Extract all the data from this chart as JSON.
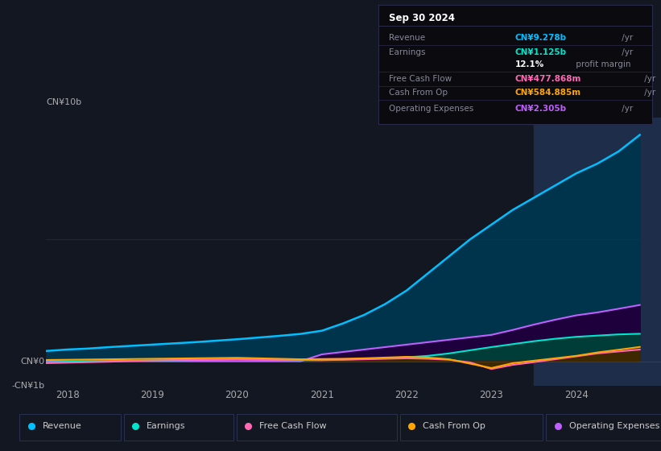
{
  "bg_color": "#131722",
  "highlight_color": "#1e2d4a",
  "title_box": {
    "date": "Sep 30 2024",
    "rows": [
      {
        "label": "Revenue",
        "value": "CN¥9.278b",
        "unit": " /yr",
        "color": "#00bfff"
      },
      {
        "label": "Earnings",
        "value": "CN¥1.125b",
        "unit": " /yr",
        "color": "#00e5cc"
      },
      {
        "label": "",
        "value": "12.1%",
        "unit": " profit margin",
        "color": "#ffffff"
      },
      {
        "label": "Free Cash Flow",
        "value": "CN¥477.868m",
        "unit": " /yr",
        "color": "#ff69b4"
      },
      {
        "label": "Cash From Op",
        "value": "CN¥584.885m",
        "unit": " /yr",
        "color": "#ffa500"
      },
      {
        "label": "Operating Expenses",
        "value": "CN¥2.305b",
        "unit": " /yr",
        "color": "#bf5fff"
      }
    ]
  },
  "ylabel_top": "CN¥10b",
  "ylabel_zero": "CN¥0",
  "ylabel_neg": "-CN¥1b",
  "x_years": [
    2018,
    2019,
    2020,
    2021,
    2022,
    2023,
    2024
  ],
  "revenue_x": [
    2017.75,
    2018.0,
    2018.25,
    2018.5,
    2018.75,
    2019.0,
    2019.25,
    2019.5,
    2019.75,
    2020.0,
    2020.25,
    2020.5,
    2020.75,
    2021.0,
    2021.25,
    2021.5,
    2021.75,
    2022.0,
    2022.25,
    2022.5,
    2022.75,
    2023.0,
    2023.25,
    2023.5,
    2023.75,
    2024.0,
    2024.25,
    2024.5,
    2024.75
  ],
  "revenue_y": [
    0.42,
    0.48,
    0.52,
    0.58,
    0.63,
    0.68,
    0.73,
    0.78,
    0.84,
    0.9,
    0.97,
    1.04,
    1.12,
    1.25,
    1.55,
    1.9,
    2.35,
    2.9,
    3.6,
    4.3,
    5.0,
    5.6,
    6.2,
    6.7,
    7.2,
    7.7,
    8.1,
    8.6,
    9.278
  ],
  "revenue_color": "#00bfff",
  "revenue_fill": "#00344d",
  "earnings_x": [
    2017.75,
    2018.0,
    2018.25,
    2018.5,
    2018.75,
    2019.0,
    2019.25,
    2019.5,
    2019.75,
    2020.0,
    2020.25,
    2020.5,
    2020.75,
    2021.0,
    2021.25,
    2021.5,
    2021.75,
    2022.0,
    2022.25,
    2022.5,
    2022.75,
    2023.0,
    2023.25,
    2023.5,
    2023.75,
    2024.0,
    2024.25,
    2024.5,
    2024.75
  ],
  "earnings_y": [
    -0.04,
    -0.02,
    0.0,
    0.01,
    0.02,
    0.03,
    0.04,
    0.05,
    0.06,
    0.07,
    0.06,
    0.05,
    0.04,
    0.05,
    0.07,
    0.09,
    0.12,
    0.16,
    0.22,
    0.32,
    0.45,
    0.58,
    0.7,
    0.82,
    0.92,
    1.0,
    1.05,
    1.1,
    1.125
  ],
  "earnings_color": "#00e5cc",
  "earnings_fill": "#003d38",
  "fcf_x": [
    2017.75,
    2018.0,
    2018.25,
    2018.5,
    2018.75,
    2019.0,
    2019.25,
    2019.5,
    2019.75,
    2020.0,
    2020.25,
    2020.5,
    2020.75,
    2021.0,
    2021.25,
    2021.5,
    2021.75,
    2022.0,
    2022.25,
    2022.5,
    2022.75,
    2023.0,
    2023.25,
    2023.5,
    2023.75,
    2024.0,
    2024.25,
    2024.5,
    2024.75
  ],
  "fcf_y": [
    -0.08,
    -0.06,
    -0.04,
    -0.02,
    0.01,
    0.03,
    0.05,
    0.06,
    0.07,
    0.08,
    0.07,
    0.06,
    0.05,
    0.04,
    0.06,
    0.08,
    0.1,
    0.12,
    0.1,
    0.06,
    -0.05,
    -0.32,
    -0.15,
    -0.04,
    0.08,
    0.2,
    0.32,
    0.4,
    0.478
  ],
  "fcf_color": "#ff69b4",
  "fcf_fill": "#3d0020",
  "cfo_x": [
    2017.75,
    2018.0,
    2018.25,
    2018.5,
    2018.75,
    2019.0,
    2019.25,
    2019.5,
    2019.75,
    2020.0,
    2020.25,
    2020.5,
    2020.75,
    2021.0,
    2021.25,
    2021.5,
    2021.75,
    2022.0,
    2022.25,
    2022.5,
    2022.75,
    2023.0,
    2023.25,
    2023.5,
    2023.75,
    2024.0,
    2024.25,
    2024.5,
    2024.75
  ],
  "cfo_y": [
    0.05,
    0.06,
    0.07,
    0.08,
    0.09,
    0.1,
    0.11,
    0.12,
    0.13,
    0.14,
    0.12,
    0.1,
    0.08,
    0.09,
    0.1,
    0.12,
    0.15,
    0.18,
    0.15,
    0.08,
    -0.1,
    -0.28,
    -0.08,
    0.02,
    0.12,
    0.22,
    0.36,
    0.47,
    0.585
  ],
  "cfo_color": "#ffa500",
  "cfo_fill": "#3d2800",
  "opex_x": [
    2017.75,
    2018.0,
    2018.25,
    2018.5,
    2018.75,
    2019.0,
    2019.25,
    2019.5,
    2019.75,
    2020.0,
    2020.25,
    2020.5,
    2020.75,
    2021.0,
    2021.25,
    2021.5,
    2021.75,
    2022.0,
    2022.25,
    2022.5,
    2022.75,
    2023.0,
    2023.25,
    2023.5,
    2023.75,
    2024.0,
    2024.25,
    2024.5,
    2024.75
  ],
  "opex_y": [
    0.0,
    0.0,
    0.0,
    0.0,
    0.0,
    0.0,
    0.0,
    0.0,
    0.0,
    0.0,
    0.0,
    0.0,
    0.0,
    0.28,
    0.38,
    0.48,
    0.58,
    0.68,
    0.78,
    0.88,
    0.98,
    1.08,
    1.28,
    1.5,
    1.7,
    1.88,
    2.0,
    2.15,
    2.305
  ],
  "opex_color": "#bf5fff",
  "opex_fill": "#1e003d",
  "highlight_start": 2023.5,
  "ylim": [
    -1.0,
    10.0
  ],
  "xlim": [
    2017.75,
    2025.0
  ],
  "legend_items": [
    {
      "label": "Revenue",
      "color": "#00bfff"
    },
    {
      "label": "Earnings",
      "color": "#00e5cc"
    },
    {
      "label": "Free Cash Flow",
      "color": "#ff69b4"
    },
    {
      "label": "Cash From Op",
      "color": "#ffa500"
    },
    {
      "label": "Operating Expenses",
      "color": "#bf5fff"
    }
  ]
}
